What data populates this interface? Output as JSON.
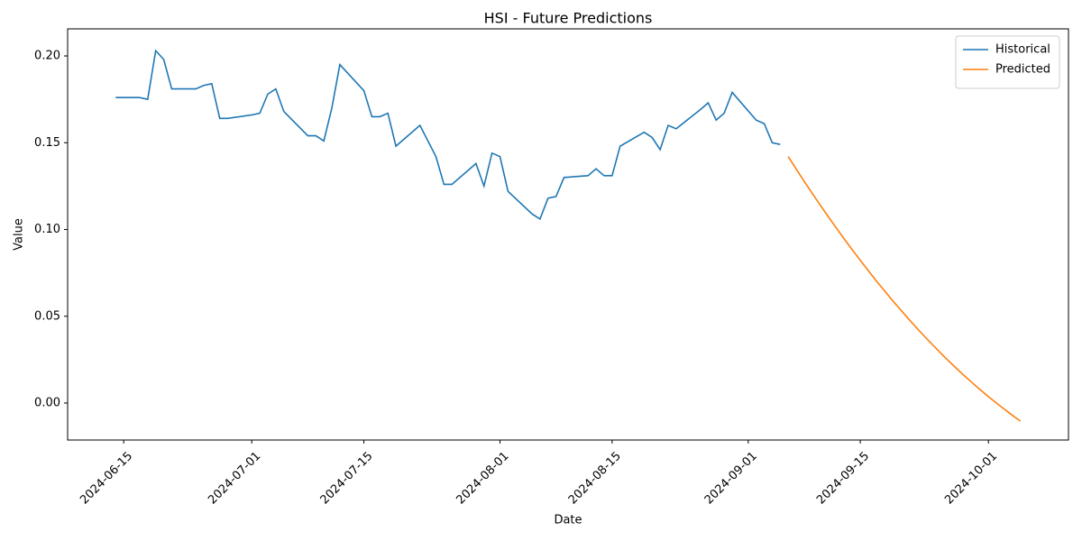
{
  "chart_data": {
    "type": "line",
    "title": "HSI - Future Predictions",
    "x_label": "Date",
    "y_label": "Value",
    "xlim": [
      "2024-06-08",
      "2024-10-11"
    ],
    "xticks": [
      "2024-06-15",
      "2024-07-01",
      "2024-07-15",
      "2024-08-01",
      "2024-08-15",
      "2024-09-01",
      "2024-09-15",
      "2024-10-01"
    ],
    "ylim": [
      -0.0213,
      0.2156
    ],
    "yticks": [
      {
        "value": 0,
        "label": "0.00"
      },
      {
        "value": 0.05,
        "label": "0.05"
      },
      {
        "value": 0.1,
        "label": "0.10"
      },
      {
        "value": 0.15,
        "label": "0.15"
      },
      {
        "value": 0.2,
        "label": "0.20"
      }
    ],
    "legend": "upper right",
    "series": [
      {
        "name": "Historical",
        "color": "#1f77b4",
        "x": [
          "2024-06-14",
          "2024-06-17",
          "2024-06-18",
          "2024-06-19",
          "2024-06-20",
          "2024-06-21",
          "2024-06-24",
          "2024-06-25",
          "2024-06-26",
          "2024-06-27",
          "2024-06-28",
          "2024-07-01",
          "2024-07-02",
          "2024-07-03",
          "2024-07-04",
          "2024-07-05",
          "2024-07-08",
          "2024-07-09",
          "2024-07-10",
          "2024-07-11",
          "2024-07-12",
          "2024-07-15",
          "2024-07-16",
          "2024-07-17",
          "2024-07-18",
          "2024-07-19",
          "2024-07-22",
          "2024-07-24",
          "2024-07-25",
          "2024-07-26",
          "2024-07-29",
          "2024-07-30",
          "2024-07-31",
          "2024-08-01",
          "2024-08-02",
          "2024-08-05",
          "2024-08-06",
          "2024-08-07",
          "2024-08-08",
          "2024-08-09",
          "2024-08-12",
          "2024-08-13",
          "2024-08-14",
          "2024-08-15",
          "2024-08-16",
          "2024-08-19",
          "2024-08-20",
          "2024-08-21",
          "2024-08-22",
          "2024-08-23",
          "2024-08-26",
          "2024-08-27",
          "2024-08-28",
          "2024-08-29",
          "2024-08-30",
          "2024-09-02",
          "2024-09-03",
          "2024-09-04",
          "2024-09-05"
        ],
        "values": [
          0.176,
          0.176,
          0.175,
          0.203,
          0.198,
          0.181,
          0.181,
          0.183,
          0.184,
          0.164,
          0.164,
          0.166,
          0.167,
          0.178,
          0.181,
          0.168,
          0.154,
          0.154,
          0.151,
          0.17,
          0.195,
          0.18,
          0.165,
          0.165,
          0.167,
          0.148,
          0.16,
          0.142,
          0.126,
          0.126,
          0.138,
          0.125,
          0.144,
          0.142,
          0.122,
          0.109,
          0.106,
          0.118,
          0.119,
          0.13,
          0.131,
          0.135,
          0.131,
          0.131,
          0.148,
          0.156,
          0.153,
          0.146,
          0.16,
          0.158,
          0.169,
          0.173,
          0.163,
          0.167,
          0.179,
          0.163,
          0.161,
          0.15,
          0.149
        ]
      },
      {
        "name": "Predicted",
        "color": "#ff7f0e",
        "x": [
          "2024-09-06",
          "2024-09-07",
          "2024-09-08",
          "2024-09-09",
          "2024-09-10",
          "2024-09-11",
          "2024-09-12",
          "2024-09-13",
          "2024-09-14",
          "2024-09-15",
          "2024-09-16",
          "2024-09-17",
          "2024-09-18",
          "2024-09-19",
          "2024-09-20",
          "2024-09-21",
          "2024-09-22",
          "2024-09-23",
          "2024-09-24",
          "2024-09-25",
          "2024-09-26",
          "2024-09-27",
          "2024-09-28",
          "2024-09-29",
          "2024-09-30",
          "2024-10-01",
          "2024-10-02",
          "2024-10-03",
          "2024-10-04",
          "2024-10-05"
        ],
        "values": [
          0.142,
          0.1348,
          0.1277,
          0.1208,
          0.114,
          0.1074,
          0.1009,
          0.0945,
          0.0883,
          0.0822,
          0.0763,
          0.0704,
          0.0648,
          0.0592,
          0.0539,
          0.0486,
          0.0435,
          0.0385,
          0.0337,
          0.029,
          0.0244,
          0.02,
          0.0157,
          0.0116,
          0.0076,
          0.0037,
          0,
          -0.0036,
          -0.0071,
          -0.0104
        ]
      }
    ]
  }
}
